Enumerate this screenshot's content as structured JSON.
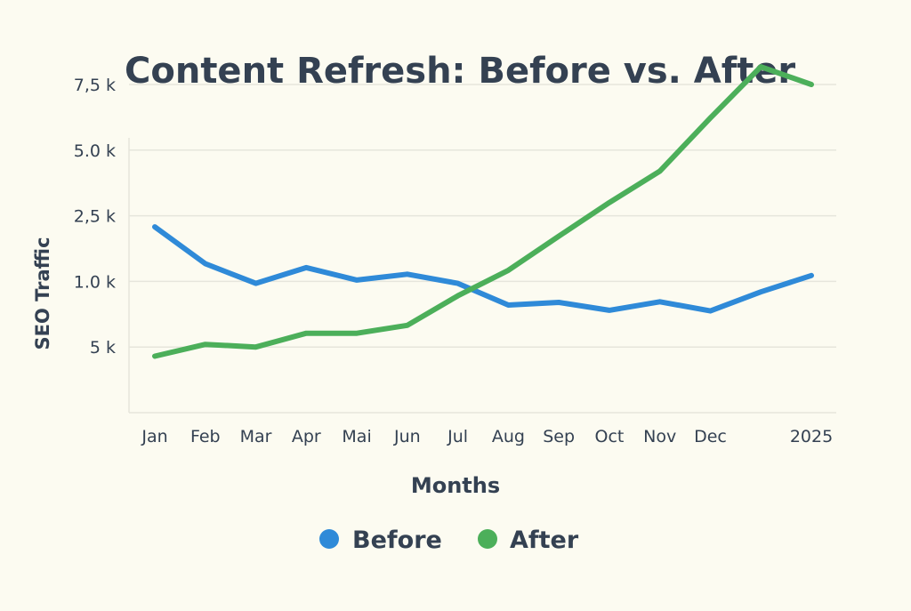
{
  "chart_data": {
    "type": "line",
    "title": "Content Refresh: Before vs. After",
    "xlabel": "Months",
    "ylabel": "SEO Traffic",
    "categories": [
      "Jan",
      "Feb",
      "Mar",
      "Apr",
      "Mai",
      "Jun",
      "Jul",
      "Aug",
      "Sep",
      "Oct",
      "Nov",
      "Dec",
      "",
      "2025"
    ],
    "y_ticks": [
      {
        "value": 1,
        "label": "5 k"
      },
      {
        "value": 2,
        "label": "1.0 k"
      },
      {
        "value": 3,
        "label": "2,5 k"
      },
      {
        "value": 4,
        "label": "5.0 k"
      },
      {
        "value": 5,
        "label": "7,5 k"
      }
    ],
    "ylim": [
      0,
      5
    ],
    "grid": true,
    "legend_position": "bottom-center",
    "series": [
      {
        "name": "Before",
        "color": "#2f8ad8",
        "values": [
          2.83,
          2.27,
          1.97,
          2.21,
          2.02,
          2.11,
          1.97,
          1.64,
          1.68,
          1.56,
          1.69,
          1.55,
          1.84,
          2.09
        ]
      },
      {
        "name": "After",
        "color": "#4caf5a",
        "values": [
          0.86,
          1.04,
          1.0,
          1.21,
          1.21,
          1.33,
          1.78,
          2.17,
          2.69,
          3.2,
          3.68,
          4.49,
          5.27,
          5.0
        ]
      }
    ]
  }
}
